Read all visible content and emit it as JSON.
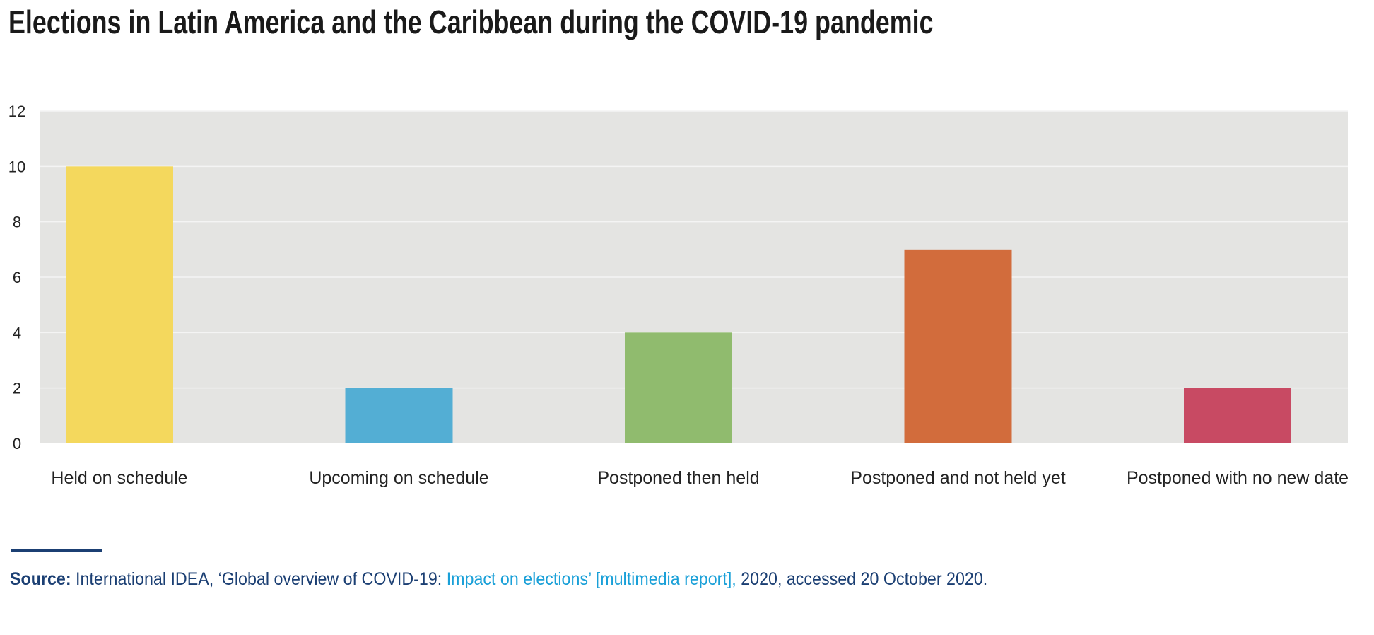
{
  "chart_data": {
    "type": "bar",
    "title": "Elections in Latin America and the Caribbean during the COVID-19 pandemic",
    "categories": [
      "Held on schedule",
      "Upcoming on schedule",
      "Postponed then held",
      "Postponed and not held yet",
      "Postponed with no new date"
    ],
    "values": [
      10,
      2,
      4,
      7,
      2
    ],
    "colors": [
      "#f4d85d",
      "#53aed4",
      "#90bb6e",
      "#d26c3c",
      "#c84a63"
    ],
    "xlabel": "",
    "ylabel": "",
    "ylim": [
      0,
      12
    ],
    "yticks": [
      0,
      2,
      4,
      6,
      8,
      10,
      12
    ],
    "grid": true,
    "plot_background": "#e4e4e2"
  },
  "source": {
    "label": "Source:",
    "text_before": " International IDEA, ‘Global overview of COVID-19: ",
    "link_text": "Impact on elections’ [multimedia report],",
    "text_after": " 2020, accessed 20 October 2020."
  }
}
